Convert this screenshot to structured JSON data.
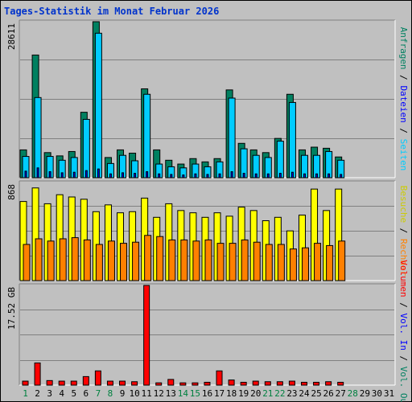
{
  "title": "Tages-Statistik im Monat Februar 2026",
  "colors": {
    "background": "#c0c0c0",
    "hits": "#008060",
    "files": "#00ccff",
    "pages": "#0000ff",
    "visits": "#ffff00",
    "hosts": "#ff8000",
    "volume": "#ff0000",
    "title": "#0033cc",
    "weekend": "#008040"
  },
  "chart_data": [
    {
      "type": "bar",
      "ymax_label": "28611",
      "ylim": [
        0,
        28611
      ],
      "grid": true,
      "axis_label_parts": [
        {
          "text": "Anfragen",
          "color": "#008060"
        },
        {
          "text": " / ",
          "color": "#000000"
        },
        {
          "text": "Dateien",
          "color": "#0000ff"
        },
        {
          "text": " / ",
          "color": "#000000"
        },
        {
          "text": "Seiten",
          "color": "#00ccff"
        }
      ],
      "categories": [
        1,
        2,
        3,
        4,
        5,
        6,
        7,
        8,
        9,
        10,
        11,
        12,
        13,
        14,
        15,
        16,
        17,
        18,
        19,
        20,
        21,
        22,
        23,
        24,
        25,
        26,
        27,
        28,
        29,
        30,
        31
      ],
      "series": [
        {
          "name": "Anfragen",
          "color": "#008060",
          "values": [
            5100,
            22500,
            4600,
            4000,
            4800,
            12000,
            28611,
            3700,
            5100,
            4500,
            16300,
            5100,
            3200,
            2500,
            3500,
            2900,
            3500,
            16100,
            6300,
            5100,
            4600,
            7200,
            15300,
            5100,
            5600,
            5400,
            3800,
            0,
            0,
            0,
            0
          ]
        },
        {
          "name": "Dateien",
          "color": "#00ccff",
          "values": [
            3900,
            14700,
            3900,
            3200,
            3700,
            10700,
            26500,
            2600,
            4100,
            3100,
            15300,
            2500,
            2000,
            1800,
            2500,
            2000,
            2900,
            14600,
            5300,
            4100,
            3700,
            6700,
            13800,
            4100,
            4100,
            4800,
            3200,
            0,
            0,
            0,
            0
          ]
        },
        {
          "name": "Seiten",
          "color": "#0000ff",
          "values": [
            1200,
            1800,
            1100,
            900,
            1000,
            1300,
            1600,
            700,
            900,
            800,
            1100,
            700,
            600,
            500,
            700,
            600,
            700,
            1100,
            800,
            700,
            700,
            800,
            1000,
            700,
            700,
            700,
            600,
            0,
            0,
            0,
            0
          ]
        }
      ]
    },
    {
      "type": "bar",
      "ymax_label": "868",
      "ylim": [
        0,
        868
      ],
      "grid": true,
      "axis_label_parts": [
        {
          "text": "Besuche",
          "color": "#cccc00"
        },
        {
          "text": " / ",
          "color": "#000000"
        },
        {
          "text": "Rechner",
          "color": "#ff8000"
        }
      ],
      "categories": [
        1,
        2,
        3,
        4,
        5,
        6,
        7,
        8,
        9,
        10,
        11,
        12,
        13,
        14,
        15,
        16,
        17,
        18,
        19,
        20,
        21,
        22,
        23,
        24,
        25,
        26,
        27,
        28,
        29,
        30,
        31
      ],
      "series": [
        {
          "name": "Besuche",
          "color": "#ffff00",
          "values": [
            700,
            820,
            680,
            760,
            740,
            720,
            610,
            670,
            600,
            610,
            730,
            560,
            680,
            620,
            600,
            560,
            600,
            570,
            650,
            620,
            530,
            560,
            440,
            580,
            810,
            620,
            810,
            0,
            0,
            0,
            0
          ]
        },
        {
          "name": "Rechner",
          "color": "#ff8000",
          "values": [
            320,
            370,
            350,
            370,
            380,
            360,
            320,
            350,
            330,
            340,
            400,
            390,
            360,
            360,
            350,
            360,
            330,
            330,
            360,
            340,
            320,
            320,
            280,
            290,
            330,
            310,
            350,
            0,
            0,
            0,
            0
          ]
        }
      ]
    },
    {
      "type": "bar",
      "ymax_label": "17.52 GB",
      "ylim": [
        0,
        17.52
      ],
      "grid": true,
      "axis_label_parts": [
        {
          "text": "Volumen",
          "color": "#ff0000"
        },
        {
          "text": " / ",
          "color": "#000000"
        },
        {
          "text": "Vol. In",
          "color": "#0000ff"
        },
        {
          "text": " / ",
          "color": "#000000"
        },
        {
          "text": "Vol. Out",
          "color": "#008060"
        }
      ],
      "categories": [
        1,
        2,
        3,
        4,
        5,
        6,
        7,
        8,
        9,
        10,
        11,
        12,
        13,
        14,
        15,
        16,
        17,
        18,
        19,
        20,
        21,
        22,
        23,
        24,
        25,
        26,
        27,
        28,
        29,
        30,
        31
      ],
      "series": [
        {
          "name": "Volumen",
          "color": "#ff0000",
          "values": [
            0.7,
            3.9,
            0.8,
            0.7,
            0.7,
            1.5,
            2.5,
            0.7,
            0.7,
            0.6,
            17.52,
            0.4,
            1.0,
            0.4,
            0.4,
            0.5,
            2.5,
            0.9,
            0.5,
            0.7,
            0.6,
            0.6,
            0.7,
            0.5,
            0.5,
            0.6,
            0.5,
            0,
            0,
            0,
            0
          ]
        }
      ]
    }
  ],
  "days": [
    {
      "label": "1",
      "weekend": true
    },
    {
      "label": "2",
      "weekend": false
    },
    {
      "label": "3",
      "weekend": false
    },
    {
      "label": "4",
      "weekend": false
    },
    {
      "label": "5",
      "weekend": false
    },
    {
      "label": "6",
      "weekend": false
    },
    {
      "label": "7",
      "weekend": true
    },
    {
      "label": "8",
      "weekend": true
    },
    {
      "label": "9",
      "weekend": false
    },
    {
      "label": "10",
      "weekend": false
    },
    {
      "label": "11",
      "weekend": false
    },
    {
      "label": "12",
      "weekend": false
    },
    {
      "label": "13",
      "weekend": false
    },
    {
      "label": "14",
      "weekend": true
    },
    {
      "label": "15",
      "weekend": true
    },
    {
      "label": "16",
      "weekend": false
    },
    {
      "label": "17",
      "weekend": false
    },
    {
      "label": "18",
      "weekend": false
    },
    {
      "label": "19",
      "weekend": false
    },
    {
      "label": "20",
      "weekend": false
    },
    {
      "label": "21",
      "weekend": true
    },
    {
      "label": "22",
      "weekend": true
    },
    {
      "label": "23",
      "weekend": false
    },
    {
      "label": "24",
      "weekend": false
    },
    {
      "label": "25",
      "weekend": false
    },
    {
      "label": "26",
      "weekend": false
    },
    {
      "label": "27",
      "weekend": false
    },
    {
      "label": "28",
      "weekend": true
    },
    {
      "label": "29",
      "weekend": false
    },
    {
      "label": "30",
      "weekend": false
    },
    {
      "label": "31",
      "weekend": false
    }
  ]
}
